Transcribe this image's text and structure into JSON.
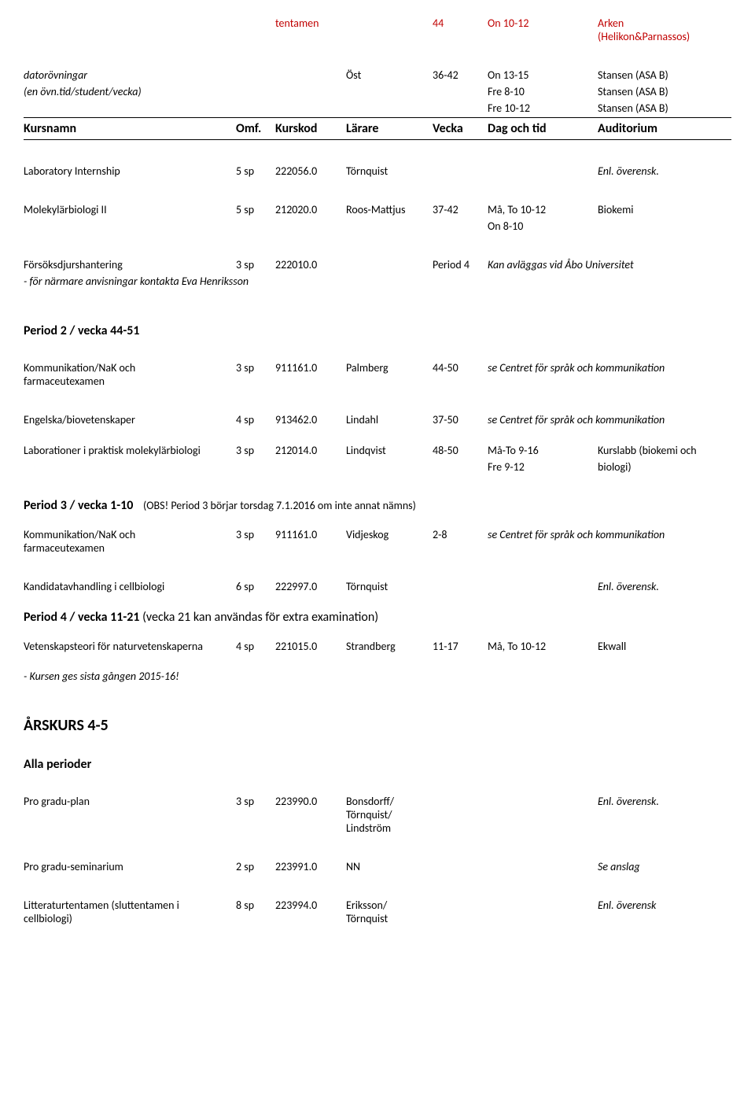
{
  "topRed": {
    "c3": "tentamen",
    "c5": "44",
    "c6": "On 10-12",
    "c7a": "Arken",
    "c7b": "(Helikon&Parnassos)"
  },
  "dator": {
    "r1": {
      "c1": "datorövningar",
      "c4": "Öst",
      "c5": "36-42",
      "c6": "On 13-15",
      "c7": "Stansen (ASA B)"
    },
    "r2": {
      "c1": "(en övn.tid/student/vecka)",
      "c6": "Fre 8-10",
      "c7": "Stansen (ASA B)"
    },
    "r3": {
      "c6": "Fre 10-12",
      "c7": "Stansen (ASA B)"
    }
  },
  "header": {
    "c1": "Kursnamn",
    "c2": "Omf.",
    "c3": "Kurskod",
    "c4": "Lärare",
    "c5": "Vecka",
    "c6": "Dag och tid",
    "c7": "Auditorium"
  },
  "lab": {
    "c1": "Laboratory Internship",
    "c2": "5 sp",
    "c3": "222056.0",
    "c4": "Törnquist",
    "c7": "Enl. överensk."
  },
  "molek": {
    "r1": {
      "c1": "Molekylärbiologi II",
      "c2": "5 sp",
      "c3": "212020.0",
      "c4": "Roos-Mattjus",
      "c5": "37-42",
      "c6": "Må, To 10-12",
      "c7": "Biokemi"
    },
    "r2": {
      "c6": "On 8-10"
    }
  },
  "forsok": {
    "r1": {
      "c1": "Försöksdjurshantering",
      "c2": "3 sp",
      "c3": "222010.0",
      "c5": "Period 4",
      "note": "Kan avläggas vid Åbo Universitet"
    },
    "r2": {
      "c1": " - för närmare anvisningar kontakta Eva Henriksson"
    }
  },
  "p2_title": "Period  2 / vecka 44-51",
  "komm1": {
    "c1a": "Kommunikation/NaK och",
    "c1b": "farmaceutexamen",
    "c2": "3 sp",
    "c3": "911161.0",
    "c4": "Palmberg",
    "c5": "44-50",
    "note": "se Centret för språk och kommunikation"
  },
  "eng": {
    "c1": "Engelska/biovetenskaper",
    "c2": "4 sp",
    "c3": "913462.0",
    "c4": "Lindahl",
    "c5": "37-50",
    "note": "se Centret för språk och kommunikation"
  },
  "labpr": {
    "r1": {
      "c1": "Laborationer i praktisk molekylärbiologi",
      "c2": "3 sp",
      "c3": "212014.0",
      "c4": "Lindqvist",
      "c5": "48-50",
      "c6": "Må-To 9-16",
      "c7": "Kurslabb (biokemi och"
    },
    "r2": {
      "c6": "Fre 9-12",
      "c7": "biologi)"
    }
  },
  "p3_title": "Period  3 / vecka 1-10",
  "p3_note": "(OBS! Period 3 börjar torsdag 7.1.2016 om inte annat nämns)",
  "komm2": {
    "c1a": "Kommunikation/NaK och",
    "c1b": "farmaceutexamen",
    "c2": "3 sp",
    "c3": "911161.0",
    "c4": "Vidjeskog",
    "c5": "2-8",
    "note": "se Centret för språk och kommunikation"
  },
  "kand": {
    "c1": "Kandidatavhandling i cellbiologi",
    "c2": "6 sp",
    "c3": "222997.0",
    "c4": "Törnquist",
    "c7": "Enl. överensk."
  },
  "p4_title": "Period  4 / vecka 11-21 ",
  "p4_note": "(vecka 21 kan användas för extra examination)",
  "vet": {
    "c1": "Vetenskapsteori för naturvetenskaperna",
    "c2": "4 sp",
    "c3": "221015.0",
    "c4": "Strandberg",
    "c5": "11-17",
    "c6": "Må, To 10-12",
    "c7": "Ekwall"
  },
  "vet_note": " - Kursen ges sista gången 2015-16!",
  "ark_title": "ÅRSKURS 4-5",
  "alla_title": "Alla perioder",
  "pgp": {
    "c1": "Pro gradu-plan",
    "c2": "3 sp",
    "c3": "223990.0",
    "c4a": "Bonsdorff/",
    "c4b": "Törnquist/",
    "c4c": "Lindström",
    "c7": "Enl. överensk."
  },
  "pgs": {
    "c1": "Pro gradu-seminarium",
    "c2": "2 sp",
    "c3": "223991.0",
    "c4": "NN",
    "c7": "Se anslag"
  },
  "lit": {
    "c1a": "Litteraturtentamen (sluttentamen i",
    "c1b": "cellbiologi)",
    "c2": "8 sp",
    "c3": "223994.0",
    "c4a": "Eriksson/",
    "c4b": "Törnquist",
    "c7": "Enl. överensk"
  }
}
